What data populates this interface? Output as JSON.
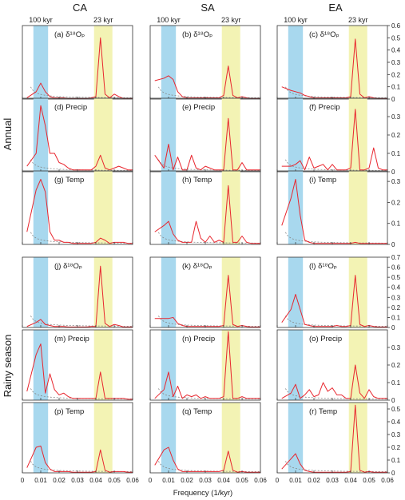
{
  "chart_data": {
    "type": "line",
    "columns": [
      "CA",
      "SA",
      "EA"
    ],
    "row_groups": [
      "Annual",
      "Rainy season"
    ],
    "band_labels": {
      "eccentricity": "100 kyr",
      "precession": "23 kyr"
    },
    "bands": {
      "eccentricity": [
        0.006,
        0.014
      ],
      "precession": [
        0.039,
        0.049
      ]
    },
    "band_colors": {
      "eccentricity": "#a8d8ee",
      "precession": "#f3f3b4"
    },
    "line_color": "#e8262e",
    "reference_color": "#888888",
    "xlabel": "Frequency (1/kyr)",
    "xlim": [
      0,
      0.06
    ],
    "x_ticks": [
      "0",
      "0.01",
      "0.02",
      "0.03",
      "0.04",
      "0.05",
      "0.06"
    ],
    "x": [
      0.0025,
      0.0075,
      0.01,
      0.0125,
      0.015,
      0.0175,
      0.02,
      0.0225,
      0.025,
      0.0275,
      0.03,
      0.0325,
      0.035,
      0.0375,
      0.04,
      0.0425,
      0.045,
      0.0475,
      0.05,
      0.0525,
      0.055,
      0.0575,
      0.06
    ],
    "y_ticks": {
      "r0": [
        "0",
        "0.1",
        "0.2",
        "0.3",
        "0.4",
        "0.5",
        "0.6"
      ],
      "r1": [
        "0",
        "0.1",
        "0.2",
        "0.3"
      ],
      "r2": [
        "0",
        "0.1",
        "0.2",
        "0.3"
      ],
      "r3": [
        "0",
        "0.1",
        "0.2",
        "0.3",
        "0.4",
        "0.5",
        "0.6",
        "0.7"
      ],
      "r4": [
        "0",
        "0.1",
        "0.2",
        "0.3"
      ],
      "r5": [
        "0",
        "0.1",
        "0.2",
        "0.3",
        "0.4",
        "0.5"
      ]
    },
    "ylim": {
      "r0": [
        0,
        0.6
      ],
      "r1": [
        0,
        0.4
      ],
      "r2": [
        0,
        0.35
      ],
      "r3": [
        0,
        0.7
      ],
      "r4": [
        0,
        0.4
      ],
      "r5": [
        0,
        0.55
      ]
    },
    "panels": [
      {
        "label": "(a)",
        "var": "δ¹⁸Oₚ",
        "row": 0,
        "col": 0,
        "values": [
          0.01,
          0.06,
          0.13,
          0.06,
          0.02,
          0.01,
          0.01,
          0.01,
          0.005,
          0.005,
          0.005,
          0.005,
          0.005,
          0.01,
          0.02,
          0.5,
          0.04,
          0.01,
          0.04,
          0.02,
          0.005,
          0.005,
          0.005
        ]
      },
      {
        "label": "(b)",
        "var": "δ¹⁸Oₚ",
        "row": 0,
        "col": 1,
        "values": [
          0.15,
          0.17,
          0.19,
          0.16,
          0.06,
          0.02,
          0.01,
          0.01,
          0.01,
          0.01,
          0.01,
          0.01,
          0.01,
          0.01,
          0.03,
          0.27,
          0.03,
          0.01,
          0.02,
          0.01,
          0.005,
          0.005,
          0.005
        ]
      },
      {
        "label": "(c)",
        "var": "δ¹⁸Oₚ",
        "row": 0,
        "col": 2,
        "values": [
          0.1,
          0.07,
          0.06,
          0.05,
          0.03,
          0.02,
          0.01,
          0.01,
          0.01,
          0.01,
          0.01,
          0.01,
          0.01,
          0.01,
          0.02,
          0.49,
          0.04,
          0.01,
          0.02,
          0.01,
          0.005,
          0.005,
          0.005
        ]
      },
      {
        "label": "(d)",
        "var": "Precip",
        "row": 1,
        "col": 0,
        "values": [
          0.03,
          0.1,
          0.36,
          0.25,
          0.1,
          0.1,
          0.05,
          0.04,
          0.02,
          0.01,
          0.01,
          0.01,
          0.01,
          0.01,
          0.03,
          0.09,
          0.02,
          0.01,
          0.02,
          0.03,
          0.02,
          0.01,
          0.01
        ]
      },
      {
        "label": "(e)",
        "var": "Precip",
        "row": 1,
        "col": 1,
        "values": [
          0.09,
          0.02,
          0.15,
          0.01,
          0.08,
          0.01,
          0.01,
          0.09,
          0.02,
          0.01,
          0.03,
          0.02,
          0.01,
          0.01,
          0.01,
          0.29,
          0.01,
          0.01,
          0.05,
          0.01,
          0.01,
          0.01,
          0.01
        ]
      },
      {
        "label": "(f)",
        "var": "Precip",
        "row": 1,
        "col": 2,
        "values": [
          0.03,
          0.03,
          0.04,
          0.06,
          0.01,
          0.08,
          0.02,
          0.03,
          0.04,
          0.01,
          0.04,
          0.01,
          0.01,
          0.01,
          0.02,
          0.34,
          0.01,
          0.01,
          0.02,
          0.13,
          0.02,
          0.01,
          0.01
        ]
      },
      {
        "label": "(g)",
        "var": "Temp",
        "row": 2,
        "col": 0,
        "values": [
          0.06,
          0.26,
          0.31,
          0.25,
          0.06,
          0.02,
          0.02,
          0.01,
          0.01,
          0.005,
          0.005,
          0.005,
          0.005,
          0.005,
          0.01,
          0.03,
          0.02,
          0.005,
          0.01,
          0.01,
          0.01,
          0.005,
          0.005
        ]
      },
      {
        "label": "(h)",
        "var": "Temp",
        "row": 2,
        "col": 1,
        "values": [
          0.06,
          0.09,
          0.11,
          0.05,
          0.02,
          0.01,
          0.01,
          0.01,
          0.11,
          0.03,
          0.01,
          0.04,
          0.01,
          0.02,
          0.01,
          0.28,
          0.01,
          0.01,
          0.04,
          0.01,
          0.005,
          0.005,
          0.005
        ]
      },
      {
        "label": "(i)",
        "var": "Temp",
        "row": 2,
        "col": 2,
        "values": [
          0.09,
          0.22,
          0.31,
          0.14,
          0.02,
          0.01,
          0.005,
          0.005,
          0.005,
          0.005,
          0.005,
          0.005,
          0.005,
          0.005,
          0.005,
          0.01,
          0.005,
          0.005,
          0.005,
          0.005,
          0.005,
          0.005,
          0.005
        ]
      },
      {
        "label": "(j)",
        "var": "δ¹⁸Oₚ",
        "row": 3,
        "col": 0,
        "values": [
          0.01,
          0.05,
          0.08,
          0.03,
          0.02,
          0.01,
          0.01,
          0.01,
          0.005,
          0.005,
          0.005,
          0.005,
          0.005,
          0.01,
          0.01,
          0.61,
          0.04,
          0.01,
          0.03,
          0.02,
          0.005,
          0.005,
          0.005
        ]
      },
      {
        "label": "(k)",
        "var": "δ¹⁸Oₚ",
        "row": 3,
        "col": 1,
        "values": [
          0.09,
          0.09,
          0.09,
          0.1,
          0.04,
          0.02,
          0.01,
          0.01,
          0.01,
          0.01,
          0.01,
          0.01,
          0.01,
          0.01,
          0.02,
          0.52,
          0.03,
          0.01,
          0.02,
          0.01,
          0.005,
          0.005,
          0.005
        ]
      },
      {
        "label": "(l)",
        "var": "δ¹⁸Oₚ",
        "row": 3,
        "col": 2,
        "values": [
          0.05,
          0.18,
          0.33,
          0.18,
          0.03,
          0.02,
          0.01,
          0.01,
          0.01,
          0.01,
          0.01,
          0.02,
          0.01,
          0.01,
          0.02,
          0.52,
          0.03,
          0.01,
          0.02,
          0.01,
          0.005,
          0.005,
          0.005
        ]
      },
      {
        "label": "(m)",
        "var": "Precip",
        "row": 4,
        "col": 0,
        "values": [
          0.05,
          0.26,
          0.32,
          0.04,
          0.15,
          0.06,
          0.03,
          0.04,
          0.02,
          0.01,
          0.01,
          0.01,
          0.01,
          0.01,
          0.01,
          0.16,
          0.01,
          0.01,
          0.01,
          0.01,
          0.01,
          0.005,
          0.005
        ]
      },
      {
        "label": "(n)",
        "var": "Precip",
        "row": 4,
        "col": 1,
        "values": [
          0.01,
          0.06,
          0.16,
          0.02,
          0.08,
          0.01,
          0.03,
          0.02,
          0.03,
          0.01,
          0.02,
          0.01,
          0.01,
          0.01,
          0.02,
          0.39,
          0.01,
          0.01,
          0.02,
          0.01,
          0.01,
          0.01,
          0.01
        ]
      },
      {
        "label": "(o)",
        "var": "Precip",
        "row": 4,
        "col": 2,
        "values": [
          0.01,
          0.04,
          0.09,
          0.01,
          0.03,
          0.06,
          0.02,
          0.03,
          0.1,
          0.05,
          0.07,
          0.03,
          0.03,
          0.01,
          0.01,
          0.2,
          0.04,
          0.01,
          0.06,
          0.02,
          0.01,
          0.01,
          0.01
        ]
      },
      {
        "label": "(p)",
        "var": "Temp",
        "row": 5,
        "col": 0,
        "values": [
          0.04,
          0.2,
          0.21,
          0.08,
          0.03,
          0.01,
          0.01,
          0.01,
          0.01,
          0.005,
          0.005,
          0.005,
          0.005,
          0.005,
          0.01,
          0.18,
          0.02,
          0.005,
          0.01,
          0.01,
          0.01,
          0.005,
          0.005
        ]
      },
      {
        "label": "(q)",
        "var": "Temp",
        "row": 5,
        "col": 1,
        "values": [
          0.06,
          0.18,
          0.2,
          0.1,
          0.03,
          0.01,
          0.01,
          0.01,
          0.01,
          0.01,
          0.01,
          0.01,
          0.01,
          0.01,
          0.02,
          0.17,
          0.02,
          0.005,
          0.01,
          0.005,
          0.005,
          0.005,
          0.005
        ]
      },
      {
        "label": "(r)",
        "var": "Temp",
        "row": 5,
        "col": 2,
        "values": [
          0.03,
          0.11,
          0.15,
          0.07,
          0.02,
          0.01,
          0.005,
          0.005,
          0.005,
          0.005,
          0.005,
          0.005,
          0.005,
          0.005,
          0.01,
          0.53,
          0.02,
          0.005,
          0.01,
          0.005,
          0.005,
          0.005,
          0.005
        ]
      }
    ]
  }
}
